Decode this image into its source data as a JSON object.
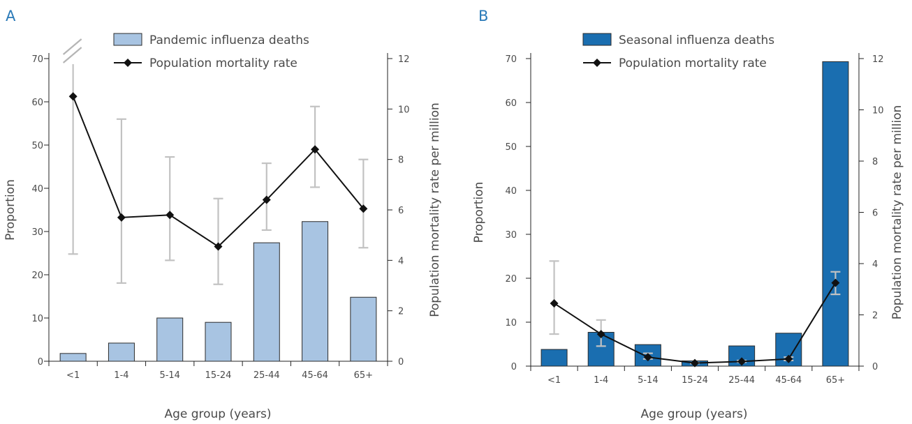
{
  "chart_data": [
    {
      "panel": "A",
      "type": "bar",
      "categories": [
        "<1",
        "1-4",
        "5-14",
        "15-24",
        "25-44",
        "45-64",
        "65+"
      ],
      "series": [
        {
          "name": "Pandemic influenza deaths",
          "type": "bar",
          "axis": "left",
          "values": [
            1.8,
            4.2,
            10,
            9,
            27.4,
            32.3,
            14.8
          ]
        },
        {
          "name": "Population mortality rate",
          "type": "line",
          "axis": "right",
          "values": [
            10.5,
            5.7,
            5.8,
            4.55,
            6.4,
            8.4,
            6.05
          ],
          "error_low": [
            4.25,
            3.1,
            4.0,
            3.05,
            5.2,
            6.9,
            4.5
          ],
          "error_high": [
            12.5,
            9.6,
            8.1,
            6.45,
            7.85,
            10.1,
            8.0
          ]
        }
      ],
      "xlabel": "Age group (years)",
      "ylabel": "Proportion",
      "y2label": "Population mortality rate per million",
      "ylim": [
        0,
        70
      ],
      "y2lim": [
        0,
        12
      ],
      "yticks": [
        "0",
        "10",
        "20",
        "30",
        "40",
        "50",
        "60",
        "70"
      ],
      "y2ticks": [
        "0",
        "2",
        "4",
        "6",
        "8",
        "10",
        "12"
      ],
      "axis_break": true,
      "bar_color": "#a8c4e2",
      "legend_position": "top"
    },
    {
      "panel": "B",
      "type": "bar",
      "categories": [
        "<1",
        "1-4",
        "5-14",
        "15-24",
        "25-44",
        "45-64",
        "65+"
      ],
      "series": [
        {
          "name": "Seasonal influenza deaths",
          "type": "bar",
          "axis": "left",
          "values": [
            3.8,
            7.7,
            4.9,
            1.2,
            4.6,
            7.5,
            69.3
          ]
        },
        {
          "name": "Population mortality rate",
          "type": "line",
          "axis": "right",
          "values": [
            2.45,
            1.25,
            0.35,
            0.12,
            0.18,
            0.28,
            3.25
          ],
          "error_low": [
            1.25,
            0.78,
            0.28,
            0.1,
            0.15,
            0.22,
            2.8
          ],
          "error_high": [
            4.1,
            1.8,
            0.5,
            0.14,
            0.22,
            0.35,
            3.68
          ]
        }
      ],
      "xlabel": "Age group (years)",
      "ylabel": "Proportion",
      "y2label": "Population mortality rate per million",
      "ylim": [
        0,
        70
      ],
      "y2lim": [
        0,
        12
      ],
      "yticks": [
        "0",
        "10",
        "20",
        "30",
        "40",
        "50",
        "60",
        "70"
      ],
      "y2ticks": [
        "0",
        "2",
        "4",
        "6",
        "8",
        "10",
        "12"
      ],
      "axis_break": false,
      "bar_color": "#1a6eb0",
      "legend_position": "top"
    }
  ]
}
